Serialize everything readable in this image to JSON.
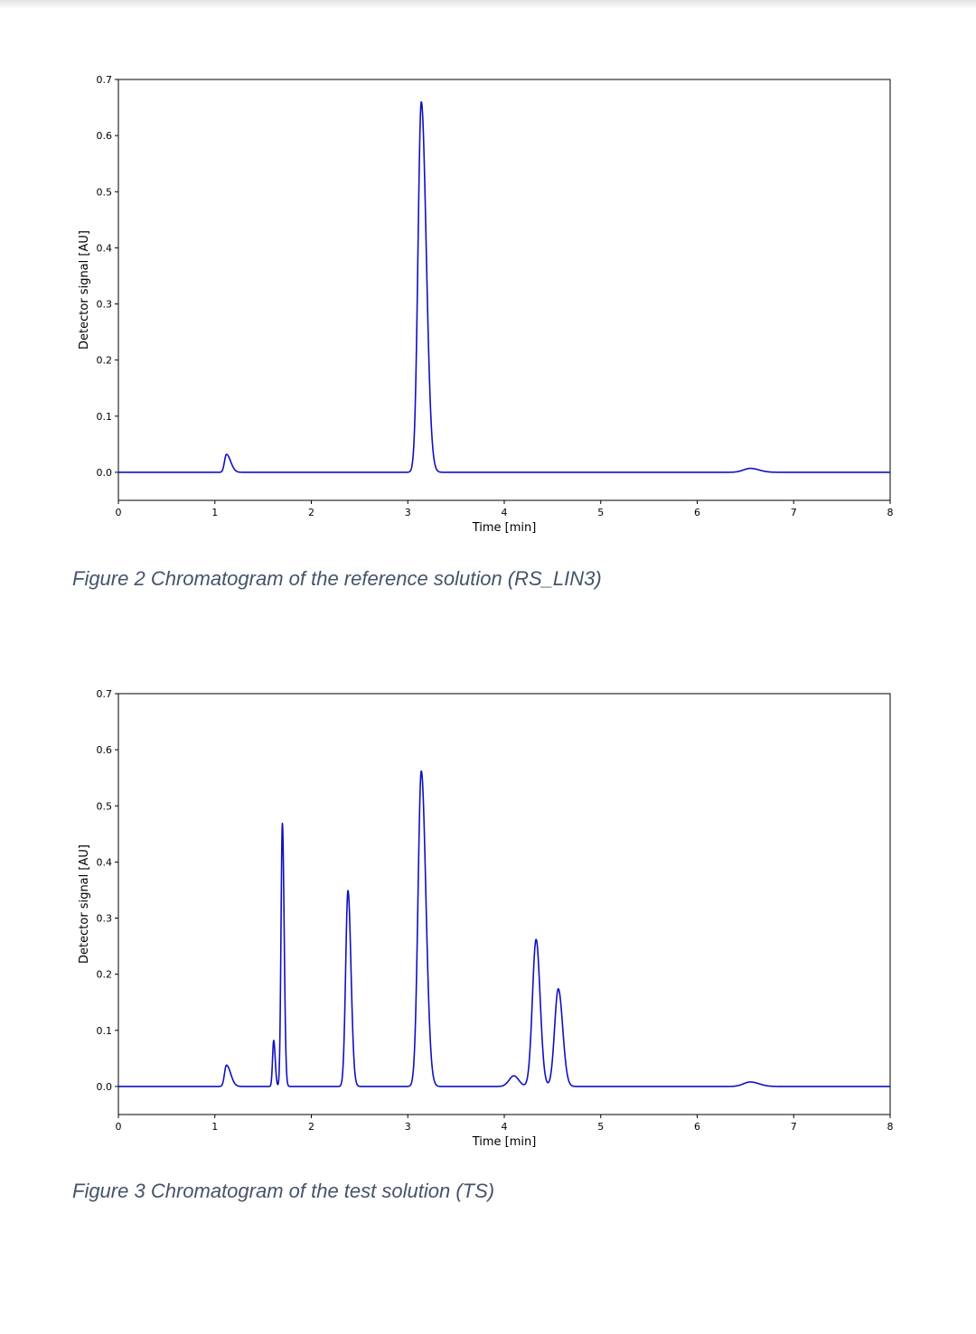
{
  "figures": [
    {
      "caption": "Figure 2 Chromatogram of the reference solution (RS_LIN3)"
    },
    {
      "caption": "Figure 3 Chromatogram of the test solution (TS)"
    }
  ],
  "colors": {
    "trace": "#1010c0",
    "caption": "#44546a"
  },
  "chart_data": [
    {
      "type": "line",
      "title": "",
      "xlabel": "Time [min]",
      "ylabel": "Detector signal [AU]",
      "xlim": [
        0,
        8
      ],
      "ylim": [
        -0.05,
        0.7
      ],
      "xticks": [
        0,
        1,
        2,
        3,
        4,
        5,
        6,
        7,
        8
      ],
      "yticks": [
        0.0,
        0.1,
        0.2,
        0.3,
        0.4,
        0.5,
        0.6,
        0.7
      ],
      "xtick_labels": [
        "0",
        "1",
        "2",
        "3",
        "4",
        "5",
        "6",
        "7",
        "8"
      ],
      "ytick_labels": [
        "0.0",
        "0.1",
        "0.2",
        "0.3",
        "0.4",
        "0.5",
        "0.6",
        "0.7"
      ],
      "grid": false,
      "baseline": 0.0,
      "peaks": [
        {
          "retention_time_min": 1.12,
          "height_au": 0.032,
          "width_sd_min": 0.02,
          "tailing": 2.2
        },
        {
          "retention_time_min": 3.14,
          "height_au": 0.66,
          "width_sd_min": 0.034,
          "tailing": 1.5
        },
        {
          "retention_time_min": 6.55,
          "height_au": 0.007,
          "width_sd_min": 0.07,
          "tailing": 1.3
        }
      ]
    },
    {
      "type": "line",
      "title": "",
      "xlabel": "Time [min]",
      "ylabel": "Detector signal [AU]",
      "xlim": [
        0,
        8
      ],
      "ylim": [
        -0.05,
        0.7
      ],
      "xticks": [
        0,
        1,
        2,
        3,
        4,
        5,
        6,
        7,
        8
      ],
      "yticks": [
        0.0,
        0.1,
        0.2,
        0.3,
        0.4,
        0.5,
        0.6,
        0.7
      ],
      "xtick_labels": [
        "0",
        "1",
        "2",
        "3",
        "4",
        "5",
        "6",
        "7",
        "8"
      ],
      "ytick_labels": [
        "0.0",
        "0.1",
        "0.2",
        "0.3",
        "0.4",
        "0.5",
        "0.6",
        "0.7"
      ],
      "grid": false,
      "baseline": 0.0,
      "peaks": [
        {
          "retention_time_min": 1.12,
          "height_au": 0.038,
          "width_sd_min": 0.02,
          "tailing": 2.2
        },
        {
          "retention_time_min": 1.61,
          "height_au": 0.082,
          "width_sd_min": 0.012,
          "tailing": 1.3
        },
        {
          "retention_time_min": 1.7,
          "height_au": 0.469,
          "width_sd_min": 0.014,
          "tailing": 1.3
        },
        {
          "retention_time_min": 2.38,
          "height_au": 0.349,
          "width_sd_min": 0.024,
          "tailing": 1.3
        },
        {
          "retention_time_min": 3.14,
          "height_au": 0.562,
          "width_sd_min": 0.034,
          "tailing": 1.4
        },
        {
          "retention_time_min": 4.1,
          "height_au": 0.019,
          "width_sd_min": 0.05,
          "tailing": 1.0
        },
        {
          "retention_time_min": 4.33,
          "height_au": 0.262,
          "width_sd_min": 0.038,
          "tailing": 1.1
        },
        {
          "retention_time_min": 4.56,
          "height_au": 0.174,
          "width_sd_min": 0.038,
          "tailing": 1.2
        },
        {
          "retention_time_min": 6.55,
          "height_au": 0.008,
          "width_sd_min": 0.07,
          "tailing": 1.3
        }
      ]
    }
  ]
}
